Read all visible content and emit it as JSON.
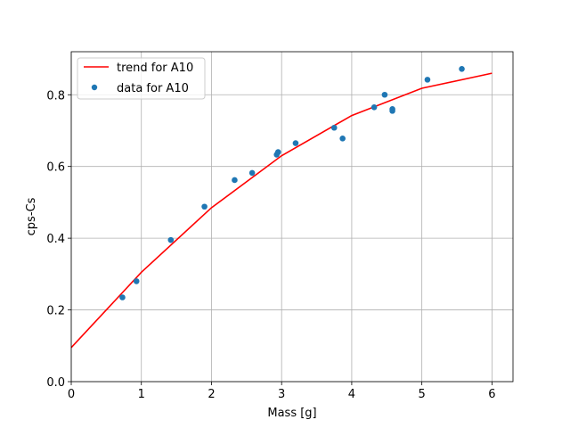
{
  "chart_data": {
    "type": "scatter",
    "title": "",
    "xlabel": "Mass [g]",
    "ylabel": "cps-Cs",
    "xlim": [
      0,
      6.3
    ],
    "ylim": [
      0,
      0.92
    ],
    "x_ticks": [
      0,
      1,
      2,
      3,
      4,
      5,
      6
    ],
    "y_ticks": [
      0.0,
      0.2,
      0.4,
      0.6,
      0.8
    ],
    "x_tick_labels": [
      "0",
      "1",
      "2",
      "3",
      "4",
      "5",
      "6"
    ],
    "y_tick_labels": [
      "0.0",
      "0.2",
      "0.4",
      "0.6",
      "0.8"
    ],
    "grid": true,
    "legend_position": "upper-left",
    "series": [
      {
        "name": "trend for A10",
        "kind": "line",
        "color": "#ff0000",
        "x": [
          0,
          1,
          2,
          3,
          4,
          5,
          6
        ],
        "y": [
          0.095,
          0.305,
          0.485,
          0.63,
          0.742,
          0.818,
          0.86
        ]
      },
      {
        "name": "data for A10",
        "kind": "scatter",
        "color": "#1f77b4",
        "x": [
          0.73,
          0.93,
          1.42,
          1.9,
          2.33,
          2.58,
          2.93,
          2.95,
          3.2,
          3.75,
          3.87,
          4.32,
          4.47,
          4.58,
          4.58,
          5.08,
          5.57
        ],
        "y": [
          0.235,
          0.28,
          0.395,
          0.488,
          0.562,
          0.582,
          0.633,
          0.64,
          0.665,
          0.708,
          0.678,
          0.765,
          0.8,
          0.76,
          0.755,
          0.842,
          0.872
        ]
      }
    ]
  }
}
